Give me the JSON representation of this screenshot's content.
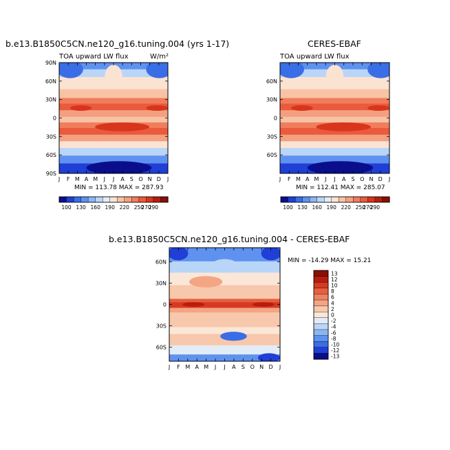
{
  "panels": {
    "model": {
      "title": "b.e13.B1850C5CN.ne120_g16.tuning.004 (yrs 1-17)",
      "left_label": "TOA upward LW flux",
      "units_label": "W/m²",
      "stats": "MIN = 113.78 MAX = 287.93"
    },
    "obs": {
      "title": "CERES-EBAF",
      "left_label": "TOA upward LW flux",
      "stats": "MIN = 112.41 MAX = 285.07"
    },
    "diff": {
      "title": "b.e13.B1850C5CN.ne120_g16.tuning.004 - CERES-EBAF",
      "stats": "MIN = -14.29 MAX = 15.21"
    }
  },
  "colors": {
    "abs_palette": [
      "#0a0e8c",
      "#1f3fd6",
      "#3a6ee6",
      "#5f92f0",
      "#8bb6f5",
      "#b9d5f7",
      "#e2ecf6",
      "#fbe3d2",
      "#f8c3a5",
      "#f4a080",
      "#f07d5c",
      "#ea5a3c",
      "#d8351c",
      "#b41e0e",
      "#8a0f04"
    ],
    "diff_palette": [
      "#0a0e8c",
      "#1f3fd6",
      "#3a6ee6",
      "#5f92f0",
      "#8bb6f5",
      "#b9d5f7",
      "#e2ecf6",
      "#fbe7d8",
      "#f8c8ac",
      "#f4a584",
      "#ef8260",
      "#e75f3f",
      "#d63b22",
      "#b71d0f",
      "#8a0f04"
    ]
  },
  "chart_data": [
    {
      "type": "heatmap",
      "name": "model",
      "title": "b.e13.B1850C5CN.ne120_g16.tuning.004 (yrs 1-17)",
      "subtitle": "TOA upward LW flux",
      "units": "W/m²",
      "x_ticks": [
        "J",
        "F",
        "M",
        "A",
        "M",
        "J",
        "J",
        "A",
        "S",
        "O",
        "N",
        "D",
        "J"
      ],
      "y_ticks": [
        "90N",
        "60N",
        "30N",
        "0",
        "30S",
        "60S",
        "90S"
      ],
      "ylim": [
        -90,
        90
      ],
      "colorbar_labels": [
        "100",
        "130",
        "160",
        "190",
        "220",
        "250",
        "270",
        "290"
      ],
      "min": 113.78,
      "max": 287.93
    },
    {
      "type": "heatmap",
      "name": "obs",
      "title": "CERES-EBAF",
      "subtitle": "TOA upward LW flux",
      "x_ticks": [
        "J",
        "F",
        "M",
        "A",
        "M",
        "J",
        "J",
        "A",
        "S",
        "O",
        "N",
        "D",
        "J"
      ],
      "y_ticks": [
        "90N",
        "60N",
        "30N",
        "0",
        "30S",
        "60S",
        "90S"
      ],
      "ylim": [
        -90,
        90
      ],
      "colorbar_labels": [
        "100",
        "130",
        "160",
        "190",
        "220",
        "250",
        "270",
        "290"
      ],
      "min": 112.41,
      "max": 285.07
    },
    {
      "type": "heatmap",
      "name": "diff",
      "title": "b.e13.B1850C5CN.ne120_g16.tuning.004 - CERES-EBAF",
      "x_ticks": [
        "J",
        "F",
        "M",
        "A",
        "M",
        "J",
        "J",
        "A",
        "S",
        "O",
        "N",
        "D",
        "J"
      ],
      "y_ticks": [
        "60N",
        "30N",
        "0",
        "30S",
        "60S"
      ],
      "ylim": [
        -80,
        80
      ],
      "colorbar_labels": [
        "13",
        "12",
        "10",
        "8",
        "6",
        "4",
        "2",
        "0",
        "-2",
        "-4",
        "-6",
        "-8",
        "-10",
        "-12",
        "-13"
      ],
      "min": -14.29,
      "max": 15.21
    }
  ]
}
